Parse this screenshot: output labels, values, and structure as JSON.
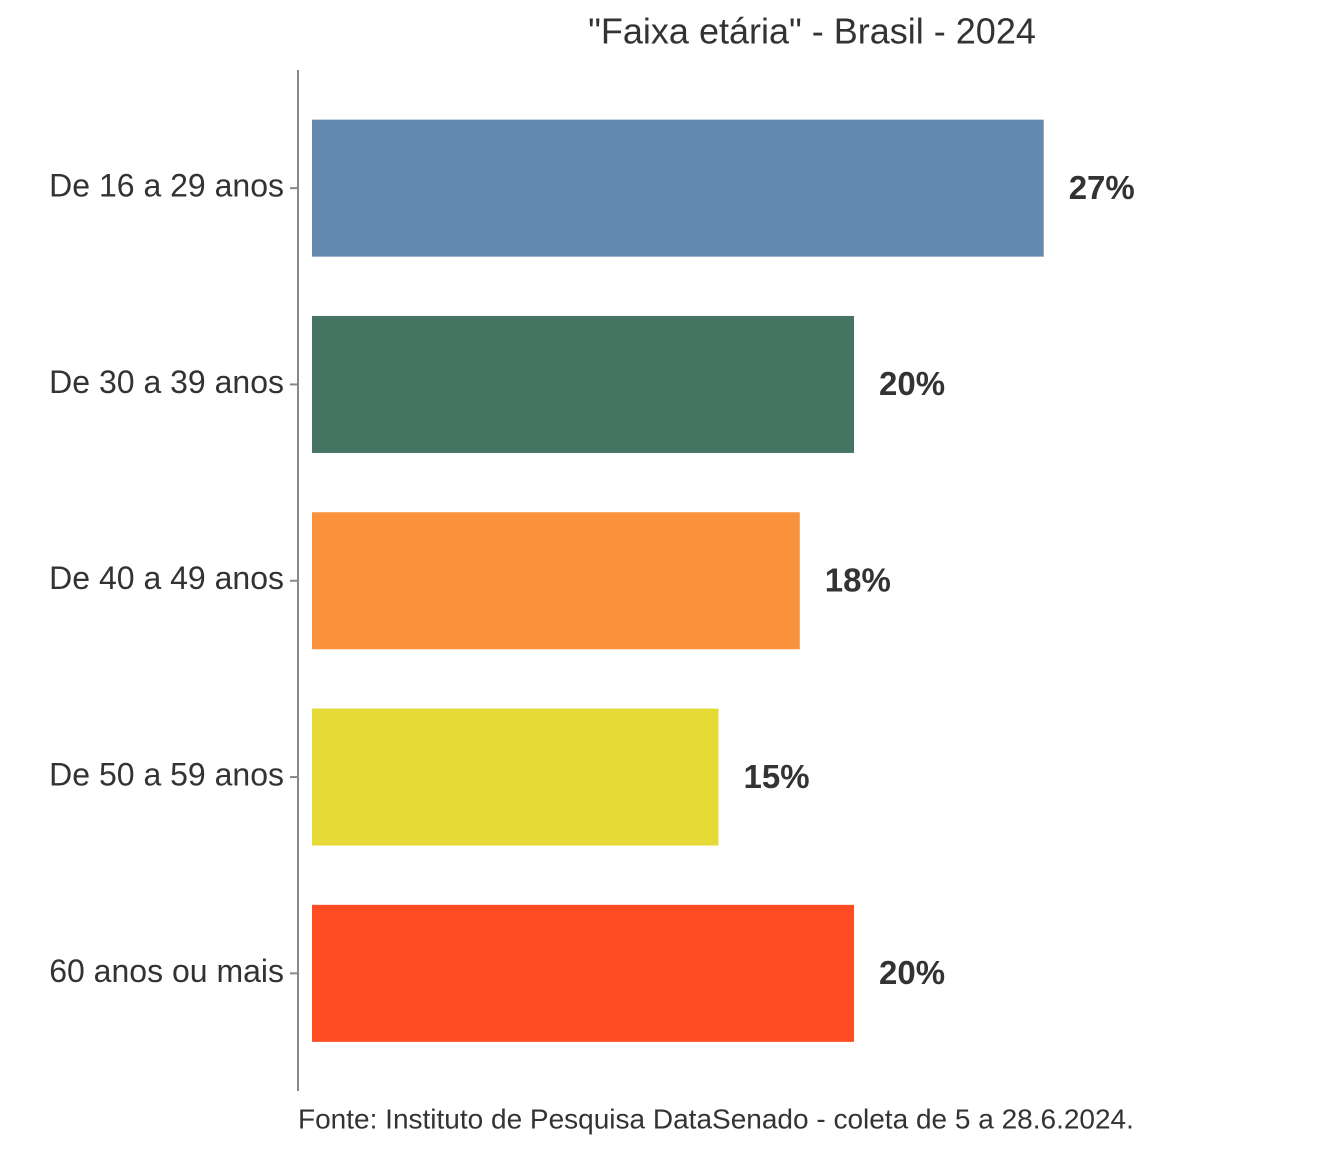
{
  "chart_data": {
    "type": "bar",
    "orientation": "horizontal",
    "title": "\"Faixa etária\" - Brasil - 2024",
    "categories": [
      "De 16 a 29 anos",
      "De 30 a 39 anos",
      "De 40 a 49 anos",
      "De 50 a 59 anos",
      "60 anos ou mais"
    ],
    "values": [
      27,
      20,
      18,
      15,
      20
    ],
    "value_labels": [
      "27%",
      "20%",
      "18%",
      "15%",
      "20%"
    ],
    "colors": [
      "#6489b0",
      "#467563",
      "#fa923c",
      "#e4d935",
      "#ff4b21"
    ],
    "caption": "Fonte: Instituto de Pesquisa DataSenado - coleta de 5 a 28.6.2024."
  }
}
